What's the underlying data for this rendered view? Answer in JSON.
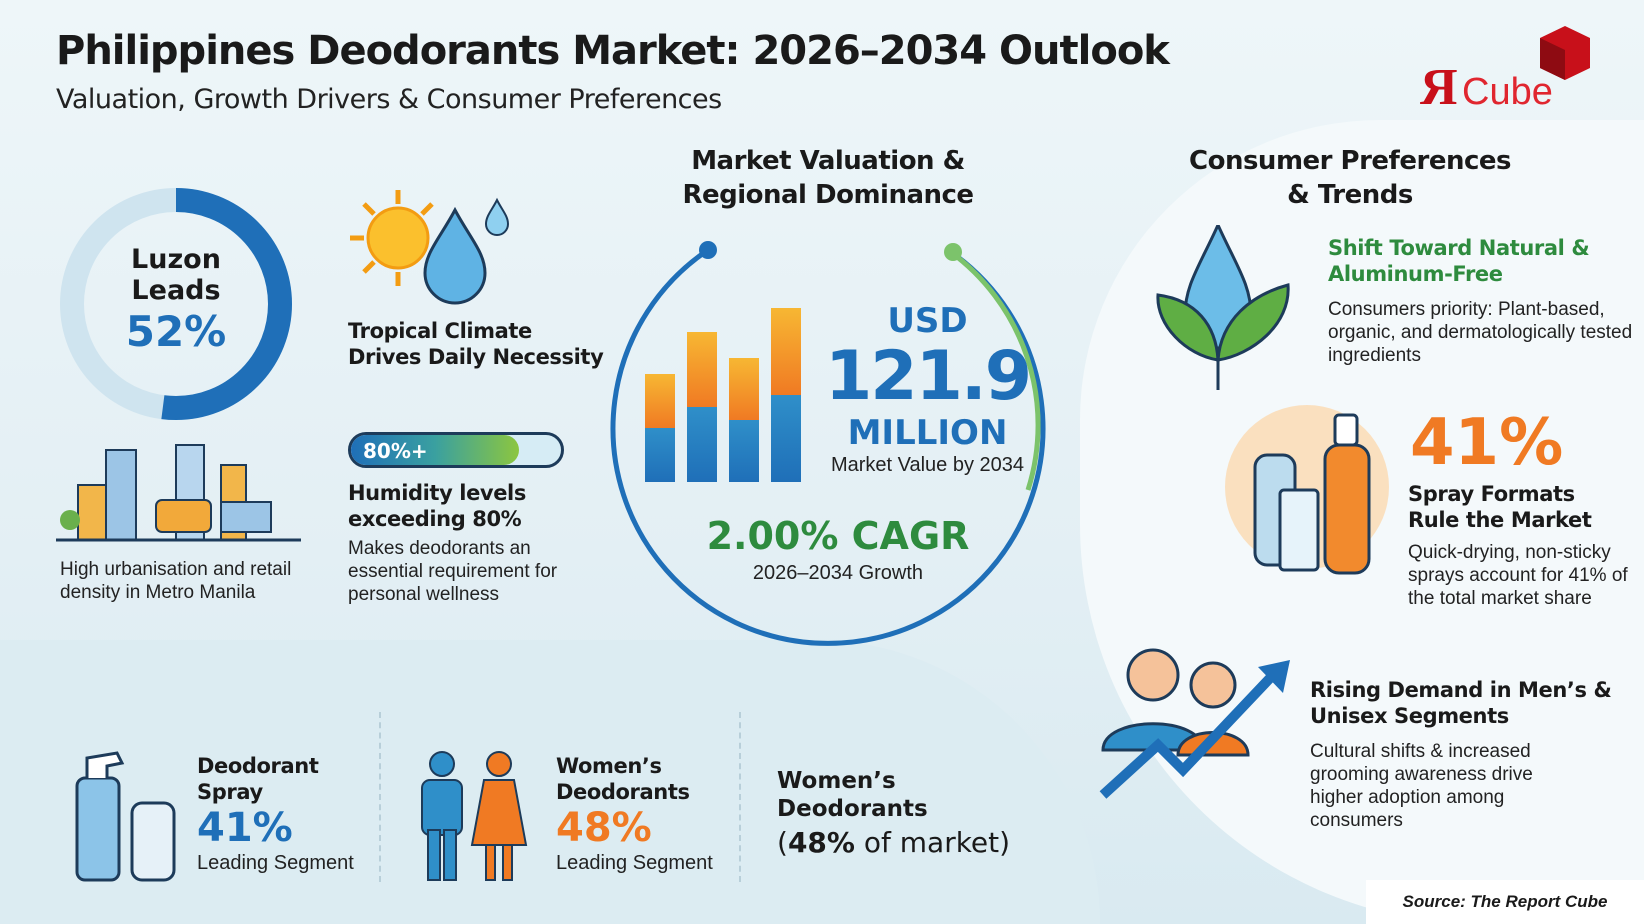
{
  "header": {
    "title": "Philippines Deodorants Market: 2026–2034 Outlook",
    "subtitle": "Valuation, Growth Drivers & Consumer Preferences"
  },
  "logo": {
    "text": "RCube"
  },
  "colors": {
    "blue": "#1f6fb8",
    "green": "#2e8b3e",
    "orange": "#f07a23",
    "bg": "#e6f1f5"
  },
  "regional": {
    "line1": "Luzon",
    "line2": "Leads",
    "value": "52%",
    "share_percent": 52,
    "caption": "High urbanisation and retail density in Metro Manila"
  },
  "climate": {
    "title": "Tropical Climate Drives Daily Necessity",
    "icon": "sun-raindrop-icon"
  },
  "humidity": {
    "badge": "80%+",
    "fill_percent": 80,
    "title": "Humidity levels exceeding 80%",
    "desc": "Makes deodorants an essential requirement for personal wellness"
  },
  "valuation": {
    "title_line1": "Market Valuation &",
    "title_line2": "Regional Dominance",
    "currency": "USD",
    "value": "121.9",
    "unit": "MILLION",
    "caption": "Market Value by 2034",
    "cagr": "2.00% CAGR",
    "cagr_caption": "2026–2034 Growth"
  },
  "preferences": {
    "title_line1": "Consumer Preferences",
    "title_line2": "& Trends",
    "natural": {
      "title": "Shift Toward Natural & Aluminum-Free",
      "desc": "Consumers priority: Plant-based, organic, and dermatologically tested ingredients"
    },
    "spray": {
      "value": "41%",
      "title": "Spray Formats Rule the Market",
      "desc": "Quick-drying, non-sticky sprays account for 41% of the total market share"
    },
    "men": {
      "title": "Rising Demand in Men’s & Unisex Segments",
      "desc": "Cultural shifts & increased grooming awareness drive higher adoption among consumers"
    }
  },
  "segments": [
    {
      "title": "Deodorant Spray",
      "value": "41%",
      "caption": "Leading Segment",
      "color": "#1f6fb8"
    },
    {
      "title": "Women’s Deodorants",
      "value": "48%",
      "caption": "Leading Segment",
      "color": "#f07a23"
    }
  ],
  "women_note": {
    "title": "Women’s Deodorants",
    "share": "48%",
    "suffix": " of market"
  },
  "source": "Source: The Report Cube"
}
